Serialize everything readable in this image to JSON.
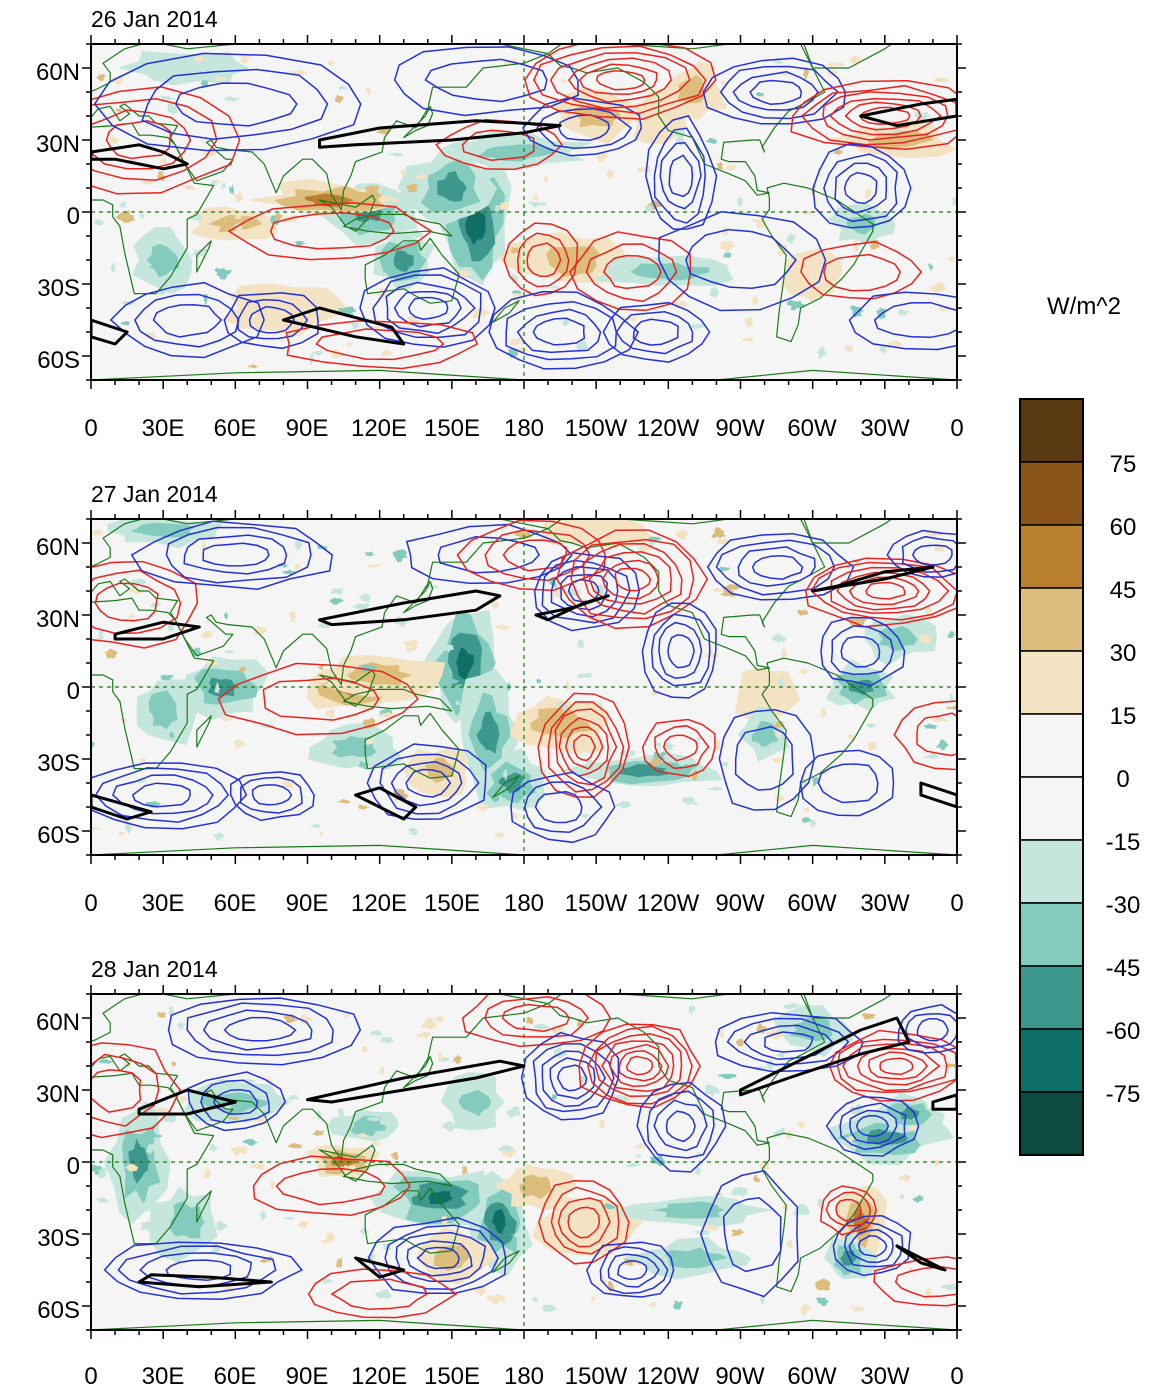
{
  "figure": {
    "panels": [
      {
        "title": "26 Jan 2014"
      },
      {
        "title": "27 Jan 2014"
      },
      {
        "title": "28 Jan 2014"
      }
    ],
    "lat_labels": [
      "60N",
      "30N",
      "0",
      "30S",
      "60S"
    ],
    "lon_labels": [
      "0",
      "30E",
      "60E",
      "90E",
      "120E",
      "150E",
      "180",
      "150W",
      "120W",
      "90W",
      "60W",
      "30W",
      "0"
    ],
    "lat_range": [
      -70,
      70
    ],
    "lon_range": [
      0,
      360
    ],
    "colorbar": {
      "unit": "W/m^2",
      "ticks": [
        "75",
        "60",
        "45",
        "30",
        "15",
        "0",
        "-15",
        "-30",
        "-45",
        "-60",
        "-75"
      ],
      "levels": [
        90,
        75,
        60,
        45,
        30,
        15,
        0,
        -15,
        -30,
        -45,
        -60,
        -75,
        -90
      ],
      "colors": [
        "#5a3a12",
        "#8a5518",
        "#b8802f",
        "#dcbd7c",
        "#f3e3c2",
        "#f5f5f5",
        "#f5f5f5",
        "#c4e6dc",
        "#82cbbd",
        "#3e978d",
        "#0f6e66",
        "#0c4b42"
      ]
    },
    "colors": {
      "positive_contour": "#e8231f",
      "negative_contour": "#2331d6",
      "zero_line": "#000000",
      "coastline": "#1a7a1a"
    }
  }
}
